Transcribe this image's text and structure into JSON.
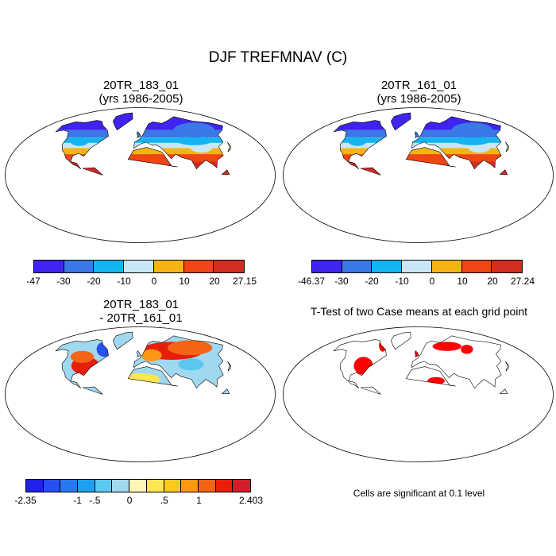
{
  "figure_title": "DJF TREFMNAV (C)",
  "panels": [
    {
      "title_line1": "20TR_183_01",
      "title_line2": "(yrs 1986-2005)",
      "colorbar": {
        "colors": [
          "#3f24f0",
          "#3a78e6",
          "#14b4f0",
          "#c8e6f5",
          "#f5b414",
          "#f04614",
          "#d22d23"
        ],
        "labels": [
          "-47",
          "-30",
          "-20",
          "-10",
          "0",
          "10",
          "20",
          "27.15"
        ]
      }
    },
    {
      "title_line1": "20TR_161_01",
      "title_line2": "(yrs 1986-2005)",
      "colorbar": {
        "colors": [
          "#3f24f0",
          "#3a78e6",
          "#14b4f0",
          "#c8e6f5",
          "#f5b414",
          "#f04614",
          "#d22d23"
        ],
        "labels": [
          "-46.37",
          "-30",
          "-20",
          "-10",
          "0",
          "10",
          "20",
          "27.24"
        ]
      }
    },
    {
      "title_line1": "20TR_183_01",
      "title_line2": "- 20TR_161_01",
      "colorbar": {
        "colors": [
          "#2020e8",
          "#2850f0",
          "#2878f0",
          "#1ea0f0",
          "#5ac8f0",
          "#a0d8f0",
          "#fff5b4",
          "#ffe650",
          "#ffc81e",
          "#ff9614",
          "#f56414",
          "#e61e0a",
          "#d21e28"
        ],
        "labels": [
          "-2.35",
          "-1",
          "-.5",
          "0",
          ".5",
          "1",
          "2.403"
        ]
      }
    },
    {
      "title": "T-Test of two Case means at each grid point",
      "note": "Cells are significant at 0.1 level"
    }
  ]
}
